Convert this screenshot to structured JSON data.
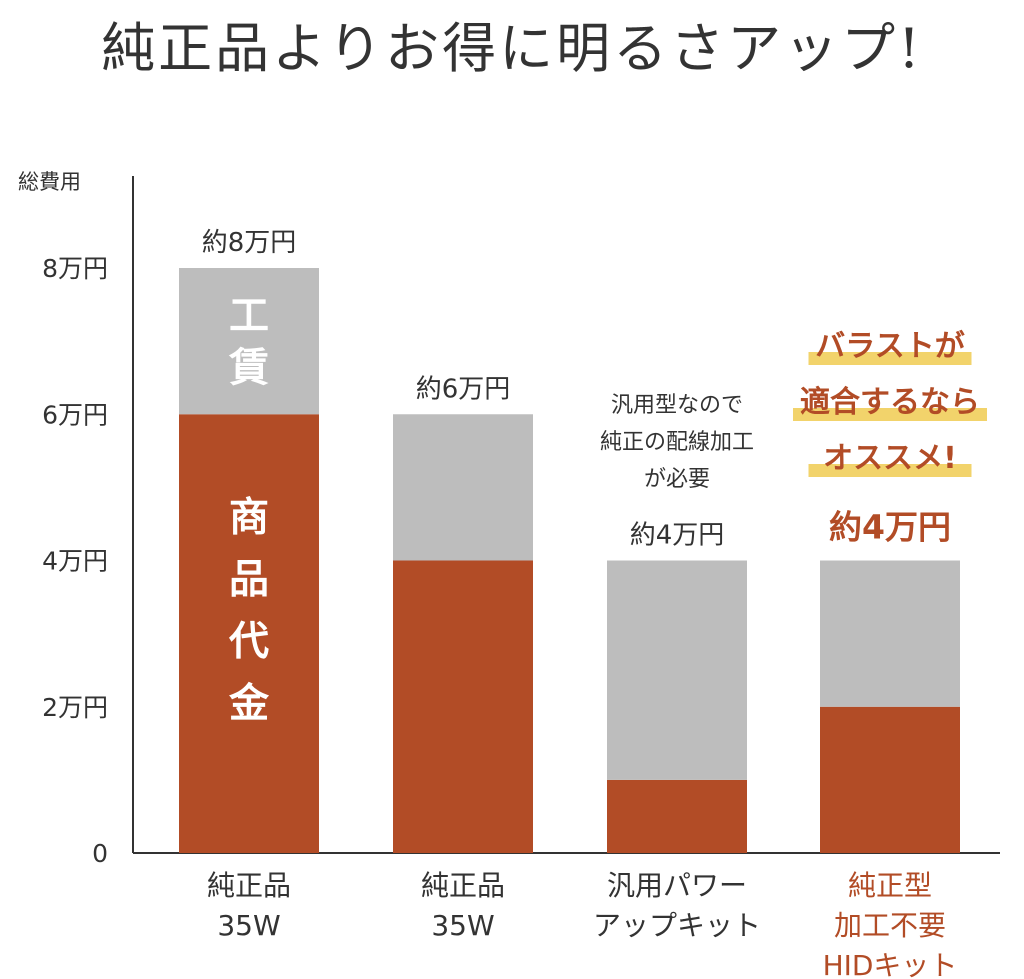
{
  "title": "純正品よりお得に明るさアップ!",
  "colors": {
    "product": "#b24c26",
    "labor": "#bdbdbd",
    "highlight": "#b24c26",
    "marker": "#f2d36b"
  },
  "chart_data": {
    "type": "bar",
    "stacked": true,
    "ylabel": "総費用",
    "ylim": [
      0,
      8
    ],
    "yticks": [
      0,
      2,
      4,
      6,
      8
    ],
    "ytick_labels": [
      "0",
      "2万円",
      "4万円",
      "6万円",
      "8万円"
    ],
    "categories": [
      [
        "純正品",
        "35W"
      ],
      [
        "純正品",
        "35W"
      ],
      [
        "汎用パワー",
        "アップキット"
      ],
      [
        "純正型",
        "加工不要",
        "HIDキット"
      ]
    ],
    "series": [
      {
        "name": "商品代金",
        "color": "#b24c26",
        "values": [
          6,
          4,
          1,
          2
        ]
      },
      {
        "name": "工賃",
        "color": "#bdbdbd",
        "values": [
          2,
          2,
          3,
          2
        ]
      }
    ],
    "totals": [
      8,
      6,
      4,
      4
    ],
    "total_labels": [
      "約8万円",
      "約6万円",
      "約4万円",
      "約4万円"
    ],
    "highlight_index": 3,
    "segment_labels": {
      "product": "商品代金",
      "labor": "工賃"
    },
    "annotations": {
      "note": [
        "汎用型なので",
        "純正の配線加工",
        "が必要"
      ],
      "promo": [
        "バラストが",
        "適合するなら",
        "オススメ!"
      ]
    }
  }
}
